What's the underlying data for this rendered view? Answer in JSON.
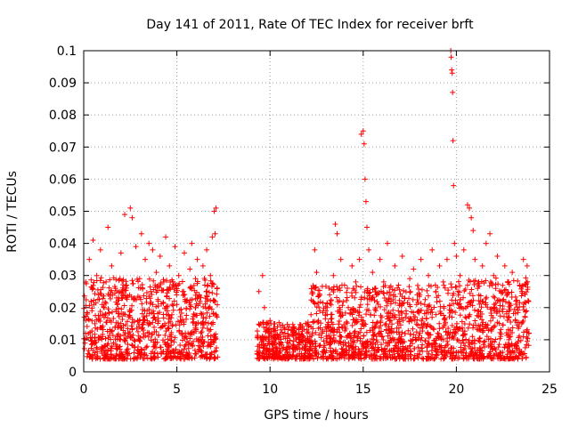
{
  "chart_data": {
    "type": "scatter",
    "title": "Day 141 of 2011, Rate Of TEC Index for receiver brft",
    "xlabel": "GPS time / hours",
    "ylabel": "ROTI / TECUs",
    "xlim": [
      0,
      25
    ],
    "ylim": [
      0,
      0.1
    ],
    "xticks": [
      0,
      5,
      10,
      15,
      20,
      25
    ],
    "xtick_labels": [
      "0",
      "5",
      "10",
      "15",
      "20",
      "25"
    ],
    "yticks": [
      0,
      0.01,
      0.02,
      0.03,
      0.04,
      0.05,
      0.06,
      0.07,
      0.08,
      0.09,
      0.1
    ],
    "ytick_labels": [
      "0",
      "0.01",
      "0.02",
      "0.03",
      "0.04",
      "0.05",
      "0.06",
      "0.07",
      "0.08",
      "0.09",
      "0.1"
    ],
    "grid": true,
    "marker": "plus",
    "color": "#ff0000",
    "series": [
      {
        "name": "ROTI",
        "points": [
          [
            0.1,
            0.012
          ],
          [
            0.2,
            0.018
          ],
          [
            0.3,
            0.035
          ],
          [
            0.4,
            0.022
          ],
          [
            0.5,
            0.041
          ],
          [
            0.6,
            0.015
          ],
          [
            0.7,
            0.03
          ],
          [
            0.8,
            0.024
          ],
          [
            0.9,
            0.038
          ],
          [
            1.0,
            0.011
          ],
          [
            1.1,
            0.02
          ],
          [
            1.2,
            0.028
          ],
          [
            1.3,
            0.045
          ],
          [
            1.4,
            0.016
          ],
          [
            1.5,
            0.033
          ],
          [
            1.6,
            0.009
          ],
          [
            1.7,
            0.026
          ],
          [
            1.8,
            0.021
          ],
          [
            1.9,
            0.014
          ],
          [
            2.0,
            0.037
          ],
          [
            2.1,
            0.018
          ],
          [
            2.2,
            0.049
          ],
          [
            2.3,
            0.027
          ],
          [
            2.4,
            0.012
          ],
          [
            2.5,
            0.051
          ],
          [
            2.6,
            0.048
          ],
          [
            2.7,
            0.023
          ],
          [
            2.8,
            0.039
          ],
          [
            2.9,
            0.016
          ],
          [
            3.0,
            0.029
          ],
          [
            3.1,
            0.043
          ],
          [
            3.2,
            0.013
          ],
          [
            3.3,
            0.035
          ],
          [
            3.4,
            0.019
          ],
          [
            3.5,
            0.04
          ],
          [
            3.6,
            0.025
          ],
          [
            3.7,
            0.038
          ],
          [
            3.8,
            0.017
          ],
          [
            3.9,
            0.031
          ],
          [
            4.0,
            0.022
          ],
          [
            4.1,
            0.036
          ],
          [
            4.2,
            0.014
          ],
          [
            4.3,
            0.028
          ],
          [
            4.4,
            0.042
          ],
          [
            4.5,
            0.019
          ],
          [
            4.6,
            0.033
          ],
          [
            4.7,
            0.011
          ],
          [
            4.8,
            0.027
          ],
          [
            4.9,
            0.039
          ],
          [
            5.0,
            0.021
          ],
          [
            5.1,
            0.03
          ],
          [
            5.2,
            0.016
          ],
          [
            5.3,
            0.025
          ],
          [
            5.4,
            0.037
          ],
          [
            5.5,
            0.022
          ],
          [
            5.6,
            0.012
          ],
          [
            5.7,
            0.032
          ],
          [
            5.8,
            0.04
          ],
          [
            5.9,
            0.018
          ],
          [
            6.0,
            0.029
          ],
          [
            6.1,
            0.035
          ],
          [
            6.2,
            0.024
          ],
          [
            6.3,
            0.015
          ],
          [
            6.4,
            0.033
          ],
          [
            6.5,
            0.027
          ],
          [
            6.6,
            0.038
          ],
          [
            6.7,
            0.02
          ],
          [
            6.8,
            0.03
          ],
          [
            6.9,
            0.042
          ],
          [
            7.0,
            0.05
          ],
          [
            7.1,
            0.051
          ],
          [
            7.05,
            0.043
          ],
          [
            9.4,
            0.025
          ],
          [
            9.5,
            0.015
          ],
          [
            9.6,
            0.03
          ],
          [
            9.7,
            0.02
          ],
          [
            9.8,
            0.013
          ],
          [
            10.0,
            0.016
          ],
          [
            10.2,
            0.011
          ],
          [
            10.4,
            0.014
          ],
          [
            10.6,
            0.009
          ],
          [
            10.8,
            0.012
          ],
          [
            11.0,
            0.008
          ],
          [
            11.2,
            0.013
          ],
          [
            11.4,
            0.01
          ],
          [
            11.6,
            0.007
          ],
          [
            11.8,
            0.011
          ],
          [
            12.0,
            0.009
          ],
          [
            12.2,
            0.014
          ],
          [
            12.3,
            0.022
          ],
          [
            12.4,
            0.038
          ],
          [
            12.5,
            0.031
          ],
          [
            12.6,
            0.016
          ],
          [
            12.8,
            0.012
          ],
          [
            13.0,
            0.019
          ],
          [
            13.2,
            0.024
          ],
          [
            13.4,
            0.03
          ],
          [
            13.5,
            0.046
          ],
          [
            13.6,
            0.043
          ],
          [
            13.8,
            0.035
          ],
          [
            14.0,
            0.027
          ],
          [
            14.2,
            0.02
          ],
          [
            14.4,
            0.033
          ],
          [
            14.6,
            0.028
          ],
          [
            14.8,
            0.035
          ],
          [
            14.9,
            0.074
          ],
          [
            15.0,
            0.075
          ],
          [
            15.05,
            0.071
          ],
          [
            15.1,
            0.06
          ],
          [
            15.15,
            0.053
          ],
          [
            15.2,
            0.045
          ],
          [
            15.3,
            0.038
          ],
          [
            15.5,
            0.031
          ],
          [
            15.7,
            0.024
          ],
          [
            15.9,
            0.035
          ],
          [
            16.1,
            0.028
          ],
          [
            16.3,
            0.04
          ],
          [
            16.5,
            0.022
          ],
          [
            16.7,
            0.033
          ],
          [
            16.9,
            0.027
          ],
          [
            17.1,
            0.036
          ],
          [
            17.3,
            0.019
          ],
          [
            17.5,
            0.029
          ],
          [
            17.7,
            0.032
          ],
          [
            17.9,
            0.024
          ],
          [
            18.1,
            0.035
          ],
          [
            18.3,
            0.021
          ],
          [
            18.5,
            0.03
          ],
          [
            18.7,
            0.038
          ],
          [
            18.9,
            0.025
          ],
          [
            19.1,
            0.033
          ],
          [
            19.3,
            0.028
          ],
          [
            19.5,
            0.035
          ],
          [
            19.7,
            0.1
          ],
          [
            19.72,
            0.098
          ],
          [
            19.75,
            0.094
          ],
          [
            19.78,
            0.093
          ],
          [
            19.8,
            0.087
          ],
          [
            19.82,
            0.072
          ],
          [
            19.85,
            0.058
          ],
          [
            19.9,
            0.04
          ],
          [
            20.0,
            0.036
          ],
          [
            20.2,
            0.03
          ],
          [
            20.4,
            0.038
          ],
          [
            20.6,
            0.052
          ],
          [
            20.7,
            0.051
          ],
          [
            20.8,
            0.048
          ],
          [
            20.9,
            0.044
          ],
          [
            21.0,
            0.035
          ],
          [
            21.2,
            0.028
          ],
          [
            21.4,
            0.033
          ],
          [
            21.6,
            0.04
          ],
          [
            21.8,
            0.043
          ],
          [
            22.0,
            0.03
          ],
          [
            22.2,
            0.036
          ],
          [
            22.4,
            0.025
          ],
          [
            22.6,
            0.033
          ],
          [
            22.8,
            0.028
          ],
          [
            23.0,
            0.031
          ],
          [
            23.2,
            0.022
          ],
          [
            23.4,
            0.027
          ],
          [
            23.6,
            0.035
          ],
          [
            23.8,
            0.033
          ]
        ],
        "bands": [
          {
            "x": [
              0.0,
              7.2
            ],
            "y": [
              0.004,
              0.026
            ]
          },
          {
            "x": [
              9.3,
              12.2
            ],
            "y": [
              0.004,
              0.014
            ]
          },
          {
            "x": [
              12.2,
              15.5
            ],
            "y": [
              0.004,
              0.024
            ]
          },
          {
            "x": [
              15.5,
              19.6
            ],
            "y": [
              0.004,
              0.024
            ]
          },
          {
            "x": [
              19.6,
              23.9
            ],
            "y": [
              0.004,
              0.026
            ]
          }
        ]
      }
    ]
  }
}
